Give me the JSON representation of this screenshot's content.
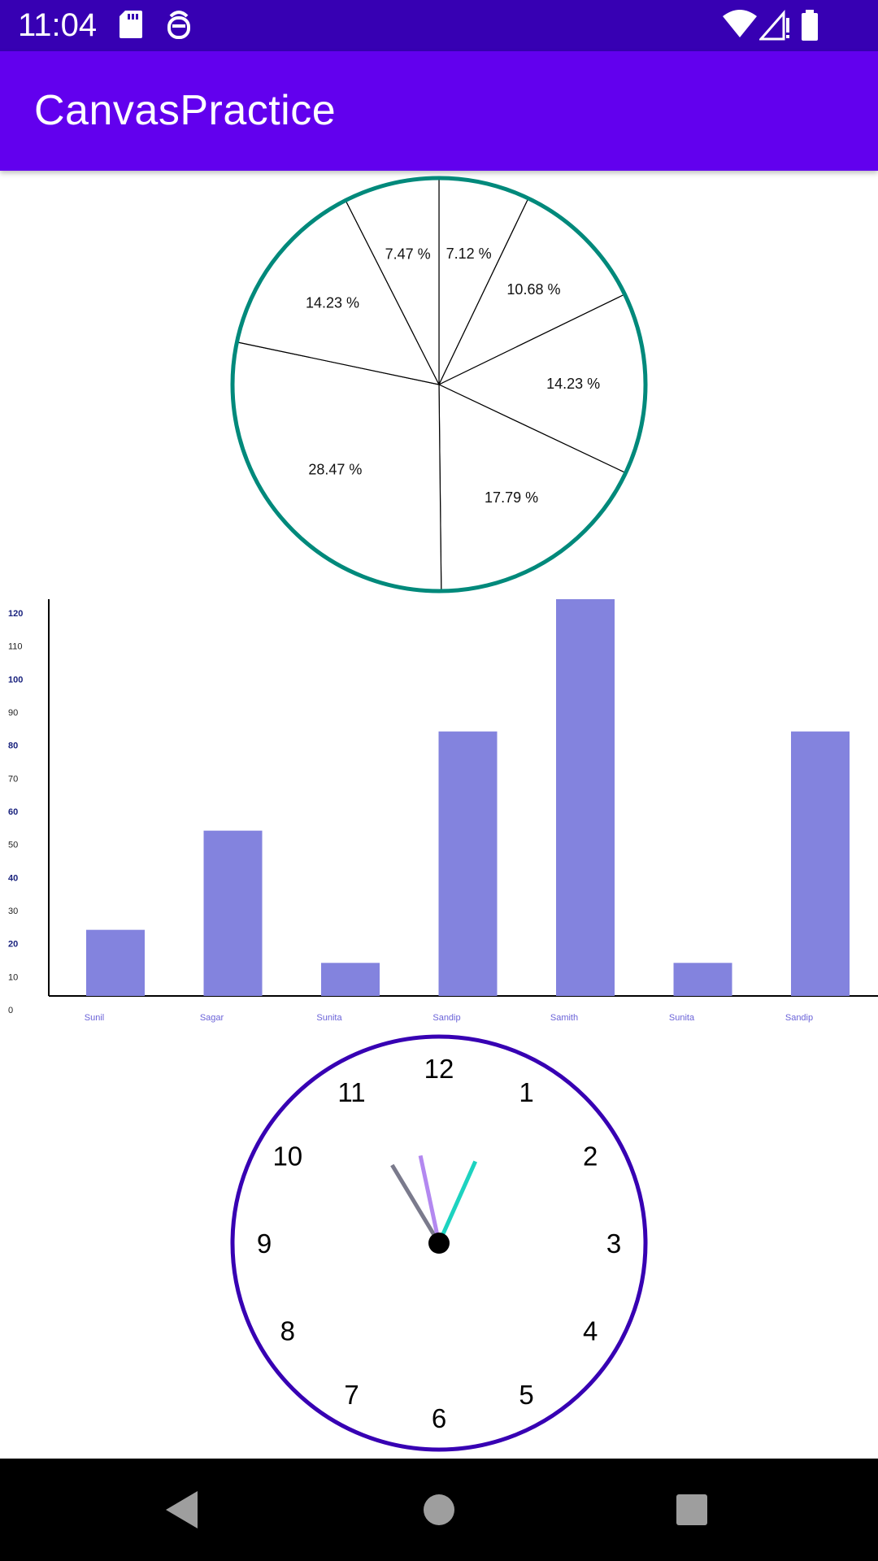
{
  "status_bar": {
    "time": "11:04",
    "icons": [
      "sd-card-icon",
      "debug-icon",
      "wifi-icon",
      "signal-icon",
      "battery-icon"
    ]
  },
  "app_bar": {
    "title": "CanvasPractice",
    "color": "#6200ee"
  },
  "colors": {
    "status_bar": "#3700b3",
    "pie_outline": "#00897b",
    "bar_fill": "#8383de",
    "clock_face": "#3700b3",
    "hour_hand": "#7a7a8c",
    "minute_hand": "#b388f0",
    "second_hand": "#1dd3c0"
  },
  "chart_data": [
    {
      "type": "pie",
      "slices": [
        {
          "label": "7.12 %",
          "value": 7.12
        },
        {
          "label": "10.68 %",
          "value": 10.68
        },
        {
          "label": "14.23 %",
          "value": 14.23
        },
        {
          "label": "17.79 %",
          "value": 17.79
        },
        {
          "label": "28.47 %",
          "value": 28.47
        },
        {
          "label": "14.23 %",
          "value": 14.23
        },
        {
          "label": "7.47 %",
          "value": 7.47
        }
      ]
    },
    {
      "type": "bar",
      "categories": [
        "Sunil",
        "Sagar",
        "Sunita",
        "Sandip",
        "Samith",
        "Sunita",
        "Sandip"
      ],
      "values": [
        20,
        50,
        10,
        80,
        120,
        10,
        80
      ],
      "ylim": [
        0,
        120
      ],
      "yticks": [
        "0",
        "10",
        "20",
        "30",
        "40",
        "50",
        "60",
        "70",
        "80",
        "90",
        "100",
        "110",
        "120"
      ]
    }
  ],
  "clock": {
    "numbers": [
      "12",
      "1",
      "2",
      "3",
      "4",
      "5",
      "6",
      "7",
      "8",
      "9",
      "10",
      "11"
    ],
    "time_shown": "10:58"
  },
  "nav_bar": {
    "back_icon": "back-triangle-icon",
    "home_icon": "home-circle-icon",
    "recents_icon": "recents-square-icon"
  }
}
